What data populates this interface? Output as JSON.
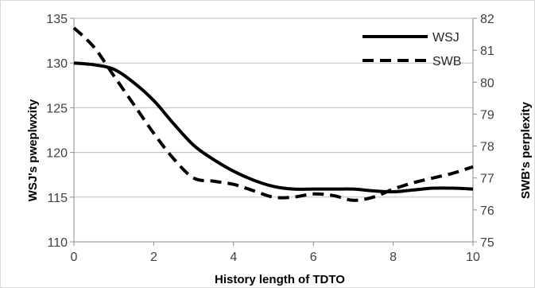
{
  "chart_data": {
    "type": "line",
    "title": "",
    "xlabel": "History length of TDTO",
    "ylabel_left": "WSJ's pweplwxity",
    "ylabel_right": "SWB's perplexity",
    "xlim": [
      0,
      10
    ],
    "x_ticks": [
      "0",
      "2",
      "4",
      "6",
      "8",
      "10"
    ],
    "ylim_left": [
      110,
      135
    ],
    "y_left_ticks": [
      "110",
      "115",
      "120",
      "125",
      "130",
      "135"
    ],
    "ylim_right": [
      75,
      82
    ],
    "y_right_ticks": [
      "75",
      "76",
      "77",
      "78",
      "79",
      "80",
      "81",
      "82"
    ],
    "grid": "horizontal",
    "legend_position": "top-right",
    "series": [
      {
        "name": "WSJ",
        "axis": "left",
        "style": "solid",
        "color": "#000000",
        "x": [
          0,
          0.5,
          1,
          1.5,
          2,
          2.5,
          3,
          3.5,
          4,
          4.5,
          5,
          5.5,
          6,
          6.5,
          7,
          7.5,
          8,
          8.5,
          9,
          9.5,
          10
        ],
        "y": [
          130.0,
          129.8,
          129.3,
          127.8,
          125.8,
          123.2,
          120.8,
          119.2,
          117.9,
          116.9,
          116.2,
          115.9,
          115.9,
          115.9,
          115.9,
          115.7,
          115.6,
          115.8,
          116.0,
          116.0,
          115.9
        ]
      },
      {
        "name": "SWB",
        "axis": "right",
        "style": "dashed",
        "color": "#000000",
        "x": [
          0,
          0.5,
          1,
          1.5,
          2,
          2.5,
          3,
          3.5,
          4,
          4.5,
          5,
          5.5,
          6,
          6.5,
          7,
          7.5,
          8,
          8.5,
          9,
          9.5,
          10
        ],
        "y": [
          81.7,
          81.1,
          80.2,
          79.3,
          78.4,
          77.6,
          77.0,
          76.9,
          76.8,
          76.6,
          76.4,
          76.4,
          76.5,
          76.45,
          76.3,
          76.4,
          76.65,
          76.85,
          77.0,
          77.15,
          77.35
        ]
      }
    ]
  }
}
